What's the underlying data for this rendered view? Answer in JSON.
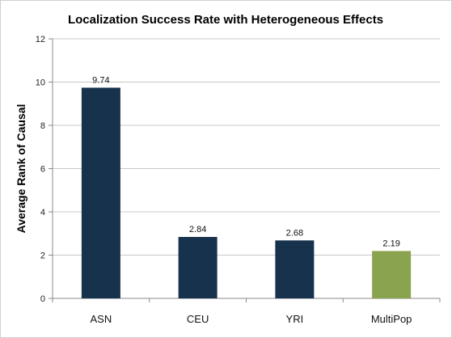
{
  "chart_data": {
    "type": "bar",
    "title": "Localization Success Rate with Heterogeneous Effects",
    "xlabel": "",
    "ylabel": "Average Rank of Causal",
    "categories": [
      "ASN",
      "CEU",
      "YRI",
      "MultiPop"
    ],
    "values": [
      9.74,
      2.84,
      2.68,
      2.19
    ],
    "data_labels": [
      "9.74",
      "2.84",
      "2.68",
      "2.19"
    ],
    "colors": [
      "#17324d",
      "#17324d",
      "#17324d",
      "#8aa34e"
    ],
    "ylim": [
      0,
      12
    ],
    "yticks": [
      0,
      2,
      4,
      6,
      8,
      10,
      12
    ],
    "grid": true,
    "legend": "none"
  }
}
